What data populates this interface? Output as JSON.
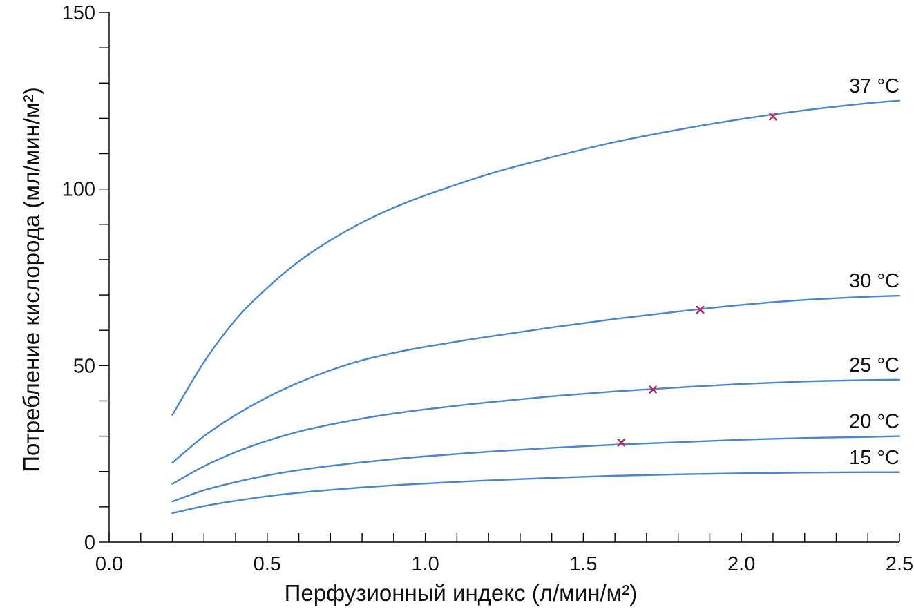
{
  "chart_data": {
    "type": "line",
    "title": "",
    "xlabel": "Перфузионный индекс (л/мин/м²)",
    "ylabel": "Потребление кислорода (мл/мин/м²)",
    "xlim": [
      0,
      2.5
    ],
    "ylim": [
      0,
      150
    ],
    "x_ticks": [
      0.0,
      0.5,
      1.0,
      1.5,
      2.0,
      2.5
    ],
    "x_tick_labels": [
      "0.0",
      "0.5",
      "1.0",
      "1.5",
      "2.0",
      "2.5"
    ],
    "x_minor_step": 0.1,
    "y_ticks": [
      0,
      50,
      100,
      150
    ],
    "y_tick_labels": [
      "0",
      "50",
      "100",
      "150"
    ],
    "y_minor_step": 10,
    "grid": false,
    "line_color": "#4a86c8",
    "marker_color": "#b0306a",
    "series": [
      {
        "name": "37 °C",
        "label": "37 °C",
        "x": [
          0.2,
          0.3,
          0.4,
          0.5,
          0.6,
          0.7,
          0.8,
          0.9,
          1.0,
          1.2,
          1.4,
          1.6,
          1.8,
          2.0,
          2.2,
          2.4,
          2.5
        ],
        "values": [
          36,
          51,
          63,
          72,
          79.5,
          85.5,
          90.5,
          94.7,
          98.2,
          104.2,
          109,
          113.3,
          116.8,
          119.8,
          122.3,
          124.3,
          125
        ],
        "marker": {
          "x": 2.1,
          "y": 120.5
        }
      },
      {
        "name": "30 °C",
        "label": "30 °C",
        "x": [
          0.2,
          0.3,
          0.4,
          0.5,
          0.6,
          0.7,
          0.8,
          0.9,
          1.0,
          1.2,
          1.4,
          1.6,
          1.8,
          2.0,
          2.2,
          2.4,
          2.5
        ],
        "values": [
          22.5,
          30,
          36,
          41,
          45.2,
          48.7,
          51.5,
          53.6,
          55.3,
          58.2,
          60.8,
          63.2,
          65.3,
          67.2,
          68.6,
          69.5,
          69.8
        ],
        "marker": {
          "x": 1.87,
          "y": 65.8
        }
      },
      {
        "name": "25 °C",
        "label": "25 °C",
        "x": [
          0.2,
          0.3,
          0.4,
          0.5,
          0.6,
          0.7,
          0.8,
          0.9,
          1.0,
          1.2,
          1.4,
          1.6,
          1.8,
          2.0,
          2.2,
          2.4,
          2.5
        ],
        "values": [
          16.5,
          21.5,
          25.5,
          28.7,
          31.3,
          33.3,
          35,
          36.4,
          37.6,
          39.6,
          41.3,
          42.7,
          43.8,
          44.8,
          45.5,
          45.9,
          46
        ],
        "marker": {
          "x": 1.72,
          "y": 43.2
        }
      },
      {
        "name": "20 °C",
        "label": "20 °C",
        "x": [
          0.2,
          0.3,
          0.4,
          0.5,
          0.6,
          0.7,
          0.8,
          0.9,
          1.0,
          1.2,
          1.4,
          1.6,
          1.8,
          2.0,
          2.2,
          2.4,
          2.5
        ],
        "values": [
          11.5,
          14.7,
          17,
          18.9,
          20.4,
          21.6,
          22.6,
          23.5,
          24.3,
          25.6,
          26.7,
          27.6,
          28.3,
          29,
          29.5,
          29.8,
          30
        ],
        "marker": {
          "x": 1.62,
          "y": 28.2
        }
      },
      {
        "name": "15 °C",
        "label": "15 °C",
        "x": [
          0.2,
          0.3,
          0.4,
          0.5,
          0.6,
          0.7,
          0.8,
          0.9,
          1.0,
          1.2,
          1.4,
          1.6,
          1.8,
          2.0,
          2.2,
          2.4,
          2.5
        ],
        "values": [
          8.2,
          10.2,
          11.7,
          13,
          14,
          14.8,
          15.5,
          16.1,
          16.6,
          17.5,
          18.2,
          18.8,
          19.2,
          19.5,
          19.7,
          19.8,
          19.8
        ],
        "marker": null
      }
    ]
  }
}
